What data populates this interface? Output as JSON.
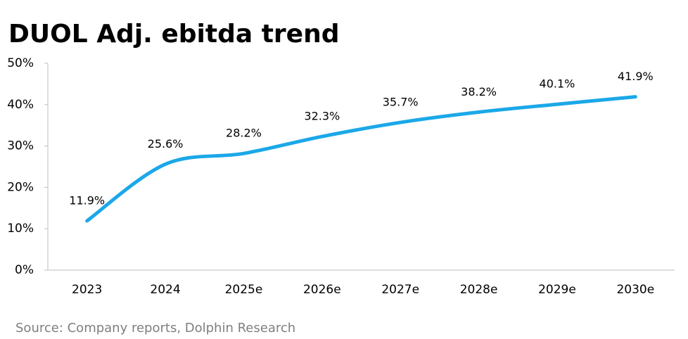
{
  "chart_data": {
    "type": "line",
    "title": "DUOL Adj. ebitda trend",
    "source": "Source: Company reports, Dolphin Research",
    "categories": [
      "2023",
      "2024",
      "2025e",
      "2026e",
      "2027e",
      "2028e",
      "2029e",
      "2030e"
    ],
    "values": [
      11.9,
      25.6,
      28.2,
      32.3,
      35.7,
      38.2,
      40.1,
      41.9
    ],
    "value_labels": [
      "11.9%",
      "25.6%",
      "28.2%",
      "32.3%",
      "35.7%",
      "38.2%",
      "40.1%",
      "41.9%"
    ],
    "color": "#1ba8e8",
    "ylim": [
      0,
      50
    ],
    "yticks": [
      {
        "value": 0,
        "label": "0%"
      },
      {
        "value": 10,
        "label": "10%"
      },
      {
        "value": 20,
        "label": "20%"
      },
      {
        "value": 30,
        "label": "30%"
      },
      {
        "value": 40,
        "label": "40%"
      },
      {
        "value": 50,
        "label": "50%"
      }
    ],
    "grid": false
  }
}
